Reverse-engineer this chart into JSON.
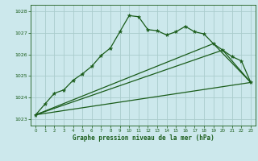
{
  "title": "Graphe pression niveau de la mer (hPa)",
  "bg_color": "#cce8ec",
  "grid_color": "#aacccc",
  "line_color": "#1a5c1a",
  "xlim": [
    -0.5,
    23.5
  ],
  "ylim": [
    1022.7,
    1028.3
  ],
  "xticks": [
    0,
    1,
    2,
    3,
    4,
    5,
    6,
    7,
    8,
    9,
    10,
    11,
    12,
    13,
    14,
    15,
    16,
    17,
    18,
    19,
    20,
    21,
    22,
    23
  ],
  "yticks": [
    1023,
    1024,
    1025,
    1026,
    1027,
    1028
  ],
  "series_main": {
    "x": [
      0,
      1,
      2,
      3,
      4,
      5,
      6,
      7,
      8,
      9,
      10,
      11,
      12,
      13,
      14,
      15,
      16,
      17,
      18,
      19,
      20,
      21,
      22,
      23
    ],
    "y": [
      1023.2,
      1023.7,
      1024.2,
      1024.35,
      1024.8,
      1025.1,
      1025.45,
      1025.95,
      1026.3,
      1027.05,
      1027.8,
      1027.75,
      1027.15,
      1027.1,
      1026.9,
      1027.05,
      1027.3,
      1027.05,
      1026.95,
      1026.5,
      1026.2,
      1025.9,
      1025.7,
      1024.7
    ]
  },
  "series_lines": [
    {
      "x": [
        0,
        23
      ],
      "y": [
        1023.2,
        1024.7
      ]
    },
    {
      "x": [
        0,
        20,
        23
      ],
      "y": [
        1023.2,
        1026.2,
        1024.7
      ]
    },
    {
      "x": [
        0,
        19,
        23
      ],
      "y": [
        1023.2,
        1026.5,
        1024.7
      ]
    }
  ]
}
